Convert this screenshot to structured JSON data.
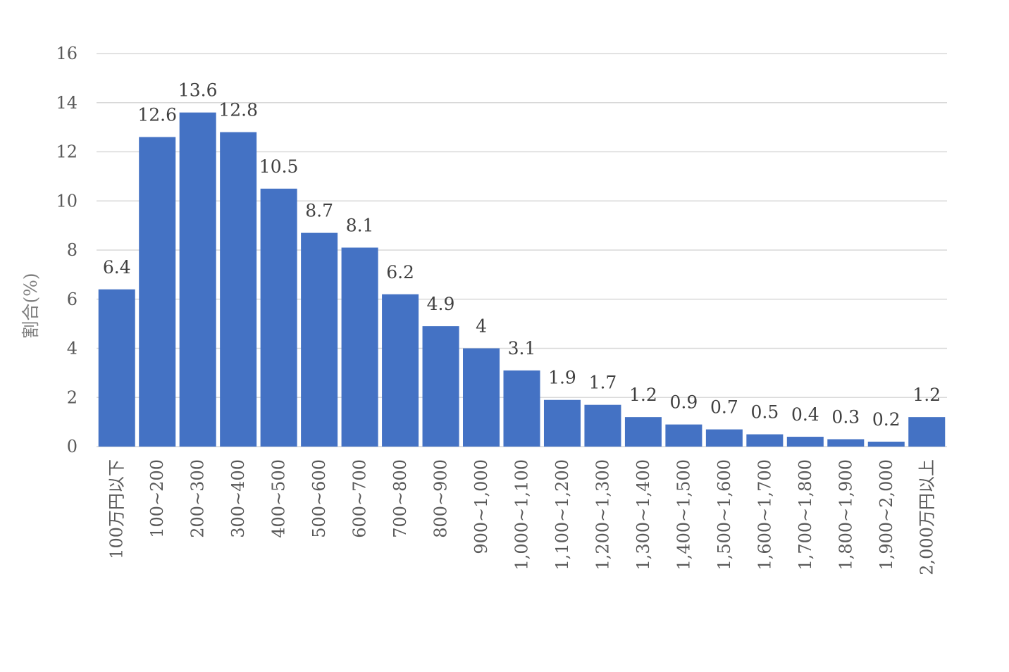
{
  "chart_data": {
    "type": "bar",
    "categories": [
      "100万円以下",
      "100~200",
      "200~300",
      "300~400",
      "400~500",
      "500~600",
      "600~700",
      "700~800",
      "800~900",
      "900~1,000",
      "1,000~1,100",
      "1,100~1,200",
      "1,200~1,300",
      "1,300~1,400",
      "1,400~1,500",
      "1,500~1,600",
      "1,600~1,700",
      "1,700~1,800",
      "1,800~1,900",
      "1,900~2,000",
      "2,000万円以上"
    ],
    "values": [
      6.4,
      12.6,
      13.6,
      12.8,
      10.5,
      8.7,
      8.1,
      6.2,
      4.9,
      4,
      3.1,
      1.9,
      1.7,
      1.2,
      0.9,
      0.7,
      0.5,
      0.4,
      0.3,
      0.2,
      1.2
    ],
    "data_labels": [
      "6.4",
      "12.6",
      "13.6",
      "12.8",
      "10.5",
      "8.7",
      "8.1",
      "6.2",
      "4.9",
      "4",
      "3.1",
      "1.9",
      "1.7",
      "1.2",
      "0.9",
      "0.7",
      "0.5",
      "0.4",
      "0.3",
      "0.2",
      "1.2"
    ],
    "ylabel": "割合(%)",
    "xlabel": "",
    "ylim": [
      0,
      16
    ],
    "yticks": [
      "0",
      "2",
      "4",
      "6",
      "8",
      "10",
      "12",
      "14",
      "16"
    ],
    "grid": true,
    "bar_color": "#4472c4"
  }
}
